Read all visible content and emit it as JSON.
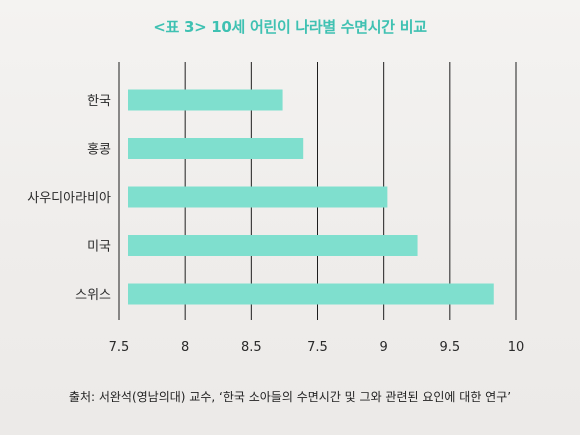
{
  "chart_data": {
    "type": "bar",
    "orientation": "horizontal",
    "title": "<표 3> 10세 어린이 나라별 수면시간 비교",
    "categories": [
      "한국",
      "홍콩",
      "사우디아라비아",
      "미국",
      "스위스"
    ],
    "values": [
      8.53,
      8.66,
      9.19,
      9.38,
      9.86
    ],
    "x_tick_labels": [
      "7.5",
      "8",
      "8.5",
      "7.5",
      "9",
      "9.5",
      "10"
    ],
    "xlim": [
      7.5,
      10
    ],
    "grid": "vertical lines",
    "xlabel": "",
    "ylabel": "",
    "bar_color": "#7fdfce",
    "title_color": "#3fc1b2"
  },
  "source_note": "출처: 서완석(영남의대) 교수, ‘한국 소아들의 수면시간 및 그와 관련된 요인에 대한 연구’"
}
